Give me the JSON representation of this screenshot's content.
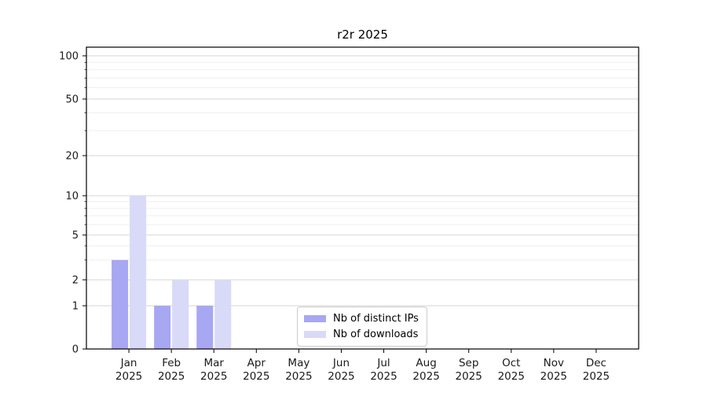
{
  "chart_data": {
    "type": "bar",
    "title": "r2r 2025",
    "categories": [
      "Jan",
      "Feb",
      "Mar",
      "Apr",
      "May",
      "Jun",
      "Jul",
      "Aug",
      "Sep",
      "Oct",
      "Nov",
      "Dec"
    ],
    "year_label": "2025",
    "series": [
      {
        "name": "Nb of distinct IPs",
        "color": "#a7a7f2",
        "values": [
          3,
          1,
          1,
          0,
          0,
          0,
          0,
          0,
          0,
          0,
          0,
          0
        ]
      },
      {
        "name": "Nb of downloads",
        "color": "#d9d9f8",
        "values": [
          10,
          2,
          2,
          0,
          0,
          0,
          0,
          0,
          0,
          0,
          0,
          0
        ]
      }
    ],
    "yticks": [
      0,
      1,
      2,
      5,
      10,
      20,
      50,
      100
    ],
    "minor_yticks": [
      3,
      4,
      6,
      7,
      8,
      9,
      30,
      40,
      60,
      70,
      80,
      90
    ],
    "yscale": "log-like (linear 0-1, log above)",
    "ylim": [
      0,
      115
    ],
    "grid": "horizontal",
    "legend_position": "inset bottom-center",
    "colors": {
      "axis": "#000000",
      "tick_label": "#1a1a1a",
      "grid_major": "#d4d4d4",
      "grid_minor": "#ededed"
    }
  }
}
